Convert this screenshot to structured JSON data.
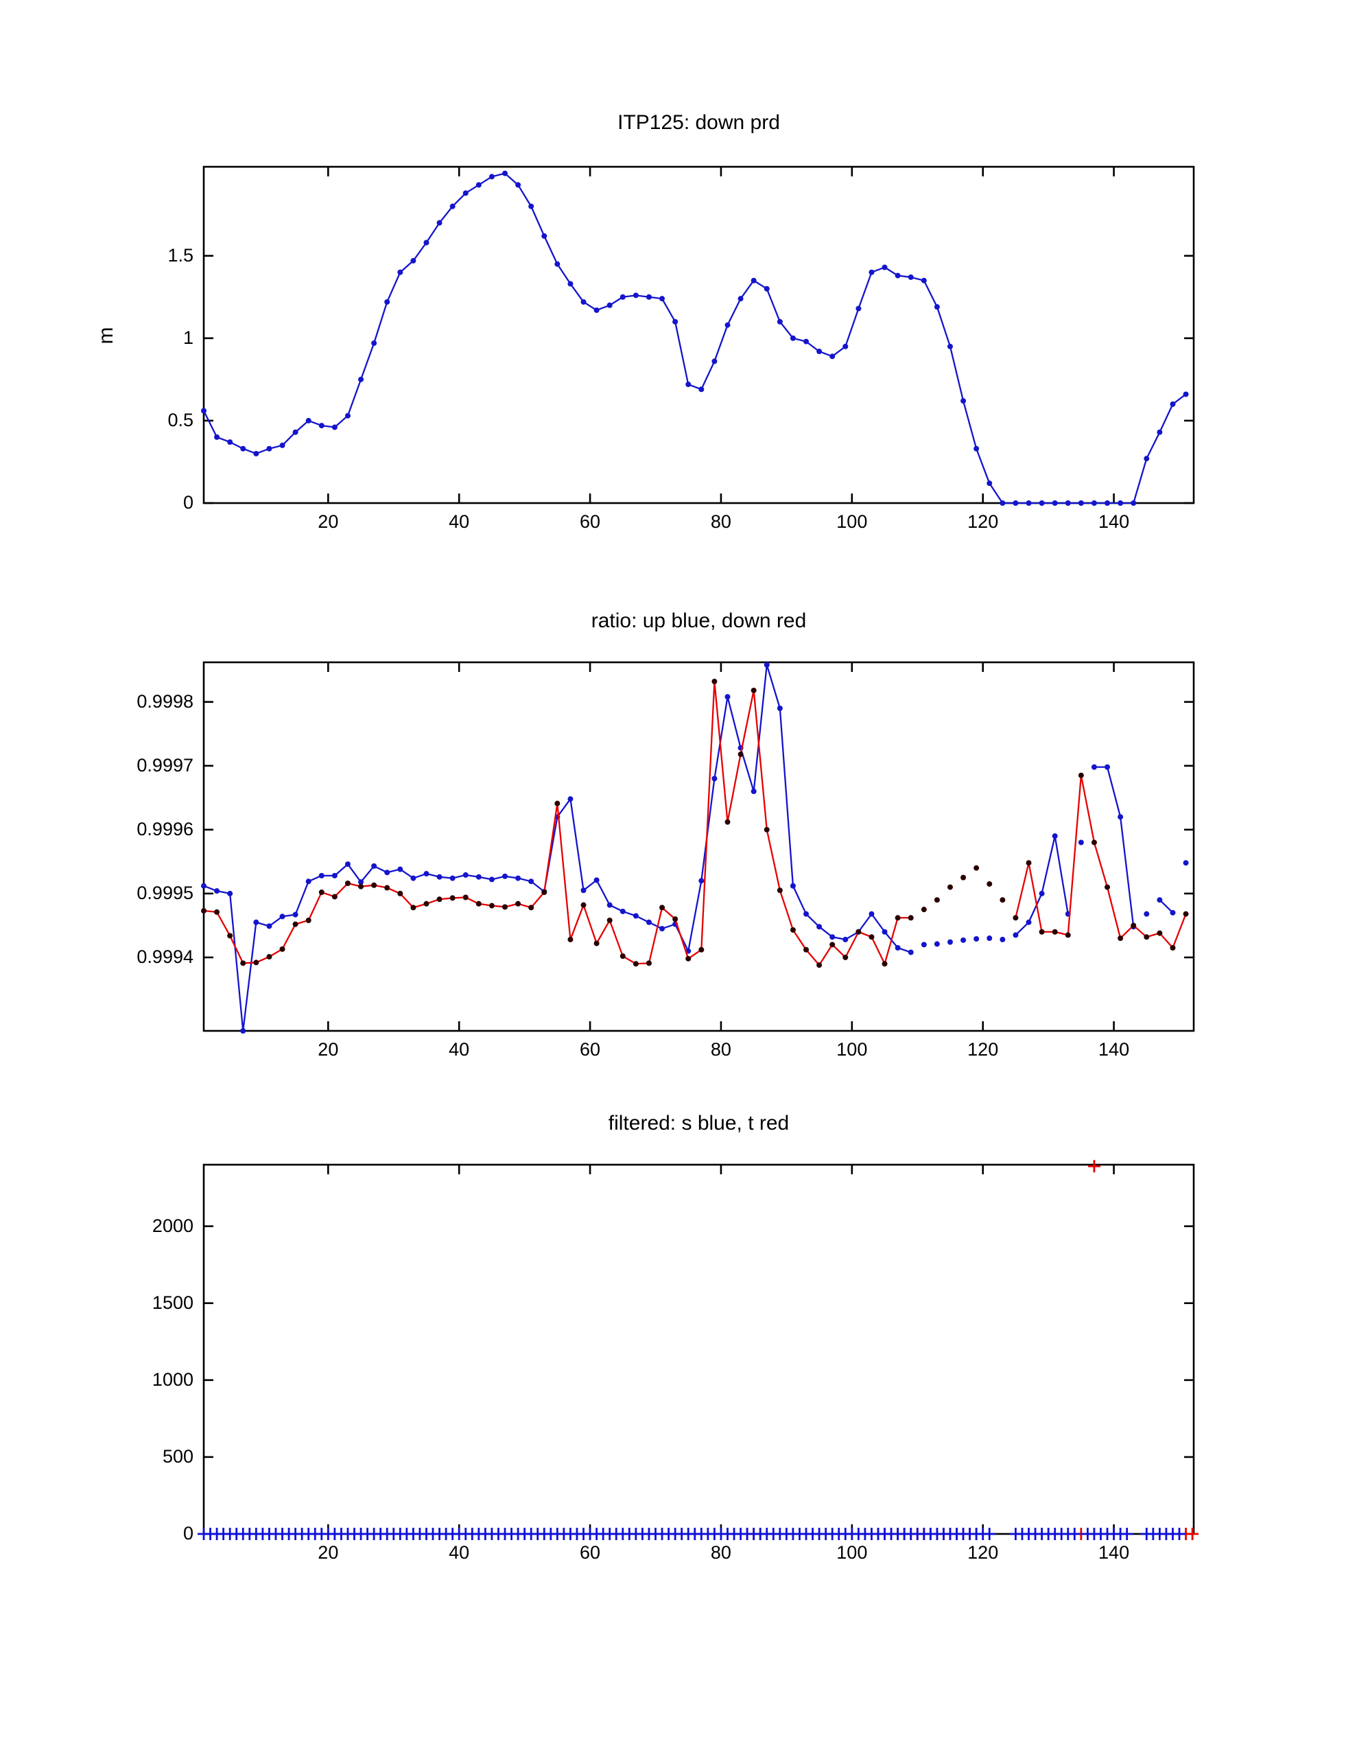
{
  "figure": {
    "background": "#ffffff",
    "axis_color": "#000000",
    "blue": "#1414cc",
    "red": "#e60000",
    "red_marker": "#2a0000"
  },
  "chart_data": [
    {
      "type": "line",
      "title": "ITP125: down prd",
      "ylabel": "m",
      "xlim": [
        1,
        152.2
      ],
      "ylim": [
        0,
        2.04
      ],
      "xticks": [
        20,
        40,
        60,
        80,
        100,
        120,
        140
      ],
      "yticks": [
        {
          "v": 0,
          "l": "0"
        },
        {
          "v": 0.5,
          "l": "0.5"
        },
        {
          "v": 1,
          "l": "1"
        },
        {
          "v": 1.5,
          "l": "1.5"
        }
      ],
      "series": [
        {
          "name": "down-profile-depth",
          "color": "#1414cc",
          "marker_color": "#1414cc",
          "marker": "dot",
          "x0": 1,
          "dx": 2,
          "y": [
            0.56,
            0.4,
            0.37,
            0.33,
            0.3,
            0.33,
            0.35,
            0.43,
            0.5,
            0.47,
            0.46,
            0.53,
            0.75,
            0.97,
            1.22,
            1.4,
            1.47,
            1.58,
            1.7,
            1.8,
            1.88,
            1.93,
            1.98,
            2.0,
            1.93,
            1.8,
            1.62,
            1.45,
            1.33,
            1.22,
            1.17,
            1.2,
            1.25,
            1.26,
            1.25,
            1.24,
            1.1,
            0.72,
            0.69,
            0.86,
            1.08,
            1.24,
            1.35,
            1.3,
            1.1,
            1.0,
            0.98,
            0.92,
            0.89,
            0.95,
            1.18,
            1.4,
            1.43,
            1.38,
            1.37,
            1.35,
            1.19,
            0.95,
            0.62,
            0.33,
            0.12,
            0,
            0,
            0,
            0,
            0,
            0,
            0,
            0,
            0,
            0,
            0,
            0.27,
            0.43,
            0.6,
            0.66
          ],
          "segments": [
            [
              0,
              75
            ]
          ]
        }
      ]
    },
    {
      "type": "line",
      "title": "ratio: up blue, down red",
      "ylabel": "",
      "xlim": [
        1,
        152.2
      ],
      "ylim": [
        0.999285,
        0.999862
      ],
      "xticks": [
        20,
        40,
        60,
        80,
        100,
        120,
        140
      ],
      "yticks": [
        {
          "v": 0.9994,
          "l": "0.9994"
        },
        {
          "v": 0.9995,
          "l": "0.9995"
        },
        {
          "v": 0.9996,
          "l": "0.9996"
        },
        {
          "v": 0.9997,
          "l": "0.9997"
        },
        {
          "v": 0.9998,
          "l": "0.9998"
        }
      ],
      "series": [
        {
          "name": "ratio-up",
          "color": "#1414cc",
          "marker_color": "#1414cc",
          "marker": "dot",
          "x0": 1,
          "dx": 2,
          "y": [
            0.999512,
            0.999504,
            0.9995,
            0.999285,
            0.999455,
            0.999449,
            0.999464,
            0.999467,
            0.999519,
            0.999528,
            0.999528,
            0.999546,
            0.999518,
            0.999543,
            0.999533,
            0.999538,
            0.999524,
            0.999531,
            0.999526,
            0.999524,
            0.999529,
            0.999526,
            0.999522,
            0.999527,
            0.999524,
            0.999519,
            0.999503,
            0.99962,
            0.999648,
            0.999505,
            0.999521,
            0.999482,
            0.999472,
            0.999465,
            0.999455,
            0.999445,
            0.999452,
            0.99941,
            0.99952,
            0.99968,
            0.999808,
            0.999728,
            0.99966,
            0.999858,
            0.99979,
            0.999512,
            0.999468,
            0.999448,
            0.999432,
            0.999428,
            0.99944,
            0.999468,
            0.99944,
            0.999415,
            0.999408,
            0.99942,
            0.999421,
            0.999424,
            0.999427,
            0.999429,
            0.99943,
            0.999428,
            0.999435,
            0.999455,
            0.9995,
            0.99959,
            0.999468,
            0.99958,
            0.999698,
            0.999698,
            0.99962,
            0.999448,
            0.999468,
            0.99949,
            0.99947,
            0.999548
          ],
          "segments": [
            [
              0,
              54
            ],
            [
              62,
              66
            ],
            [
              68,
              71
            ],
            [
              73,
              74
            ]
          ]
        },
        {
          "name": "ratio-down",
          "color": "#e60000",
          "marker_color": "#2a0000",
          "marker": "dot",
          "x0": 1,
          "dx": 2,
          "y": [
            0.999473,
            0.999471,
            0.999434,
            0.999391,
            0.999392,
            0.999401,
            0.999413,
            0.999452,
            0.999458,
            0.999502,
            0.999495,
            0.999516,
            0.999511,
            0.999513,
            0.999509,
            0.9995,
            0.999478,
            0.999484,
            0.999491,
            0.999493,
            0.999494,
            0.999484,
            0.999481,
            0.999479,
            0.999484,
            0.999478,
            0.999502,
            0.999641,
            0.999428,
            0.999482,
            0.999422,
            0.999458,
            0.999402,
            0.99939,
            0.999391,
            0.999478,
            0.99946,
            0.999398,
            0.999412,
            0.999832,
            0.999612,
            0.999718,
            0.999818,
            0.9996,
            0.999505,
            0.999443,
            0.999412,
            0.999388,
            0.99942,
            0.9994,
            0.99944,
            0.999432,
            0.99939,
            0.999462,
            0.999462,
            0.999475,
            0.99949,
            0.99951,
            0.999525,
            0.99954,
            0.999515,
            0.99949,
            0.999462,
            0.999548,
            0.99944,
            0.99944,
            0.999435,
            0.999685,
            0.99958,
            0.99951,
            0.99943,
            0.99945,
            0.999432,
            0.999438,
            0.999415,
            0.999468
          ],
          "segments": [
            [
              0,
              54
            ],
            [
              62,
              75
            ]
          ]
        }
      ]
    },
    {
      "type": "scatter",
      "title": "filtered: s blue, t red",
      "ylabel": "",
      "xlim": [
        1,
        152.2
      ],
      "ylim": [
        0,
        2400
      ],
      "xticks": [
        20,
        40,
        60,
        80,
        100,
        120,
        140
      ],
      "yticks": [
        {
          "v": 0,
          "l": "0"
        },
        {
          "v": 500,
          "l": "500"
        },
        {
          "v": 1000,
          "l": "1000"
        },
        {
          "v": 1500,
          "l": "1500"
        },
        {
          "v": 2000,
          "l": "2000"
        }
      ],
      "series": [
        {
          "name": "t-filtered-red",
          "color": "#e60000",
          "marker": "plus",
          "runs": [
            [
              84,
              86
            ],
            [
              104,
              119
            ],
            [
              135,
              135
            ],
            [
              151,
              152
            ]
          ],
          "run_y": 0,
          "points": [
            [
              137,
              2390
            ]
          ]
        },
        {
          "name": "s-filtered-blue",
          "color": "#0f0fd8",
          "marker": "plus",
          "runs": [
            [
              1,
              121
            ],
            [
              125,
              134
            ],
            [
              136,
              142
            ],
            [
              145,
              150
            ]
          ],
          "run_y": 0,
          "points": []
        }
      ]
    }
  ]
}
